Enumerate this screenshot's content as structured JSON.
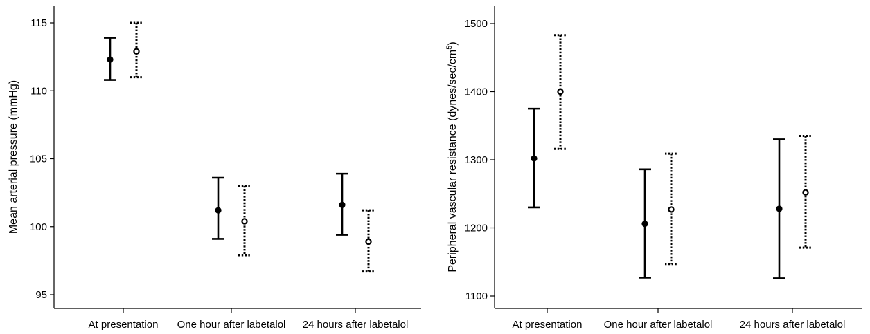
{
  "chart_data": [
    {
      "type": "errorbar",
      "ylabel": "Mean arterial pressure (mmHg)",
      "ylim": [
        94,
        116.2
      ],
      "yticks": [
        95,
        100,
        105,
        110,
        115
      ],
      "categories": [
        "At presentation",
        "One hour after labetalol",
        "24 hours after labetalol"
      ],
      "series": [
        {
          "style": "solid",
          "marker": "filled-circle",
          "values": [
            112.3,
            101.2,
            101.6
          ],
          "lower": [
            110.8,
            99.1,
            99.4
          ],
          "upper": [
            113.9,
            103.6,
            103.9
          ]
        },
        {
          "style": "dotted",
          "marker": "open-circle",
          "values": [
            112.9,
            100.4,
            98.9
          ],
          "lower": [
            111.0,
            97.9,
            96.7
          ],
          "upper": [
            115.0,
            103.0,
            101.2
          ]
        }
      ]
    },
    {
      "type": "errorbar",
      "ylabel": "Peripheral vascular resistance (dynes/sec/cm",
      "ylabel_superscript": "5",
      "ylabel_suffix": ")",
      "ylim": [
        1090,
        1522
      ],
      "yticks": [
        1100,
        1200,
        1300,
        1400,
        1500
      ],
      "categories": [
        "At presentation",
        "One hour after labetalol",
        "24 hours after labetalol"
      ],
      "series": [
        {
          "style": "solid",
          "marker": "filled-circle",
          "values": [
            1302,
            1206,
            1228
          ],
          "lower": [
            1230,
            1127,
            1126
          ],
          "upper": [
            1375,
            1286,
            1330
          ]
        },
        {
          "style": "dotted",
          "marker": "open-circle",
          "values": [
            1400,
            1227,
            1252
          ],
          "lower": [
            1316,
            1147,
            1171
          ],
          "upper": [
            1483,
            1309,
            1335
          ]
        }
      ]
    }
  ]
}
